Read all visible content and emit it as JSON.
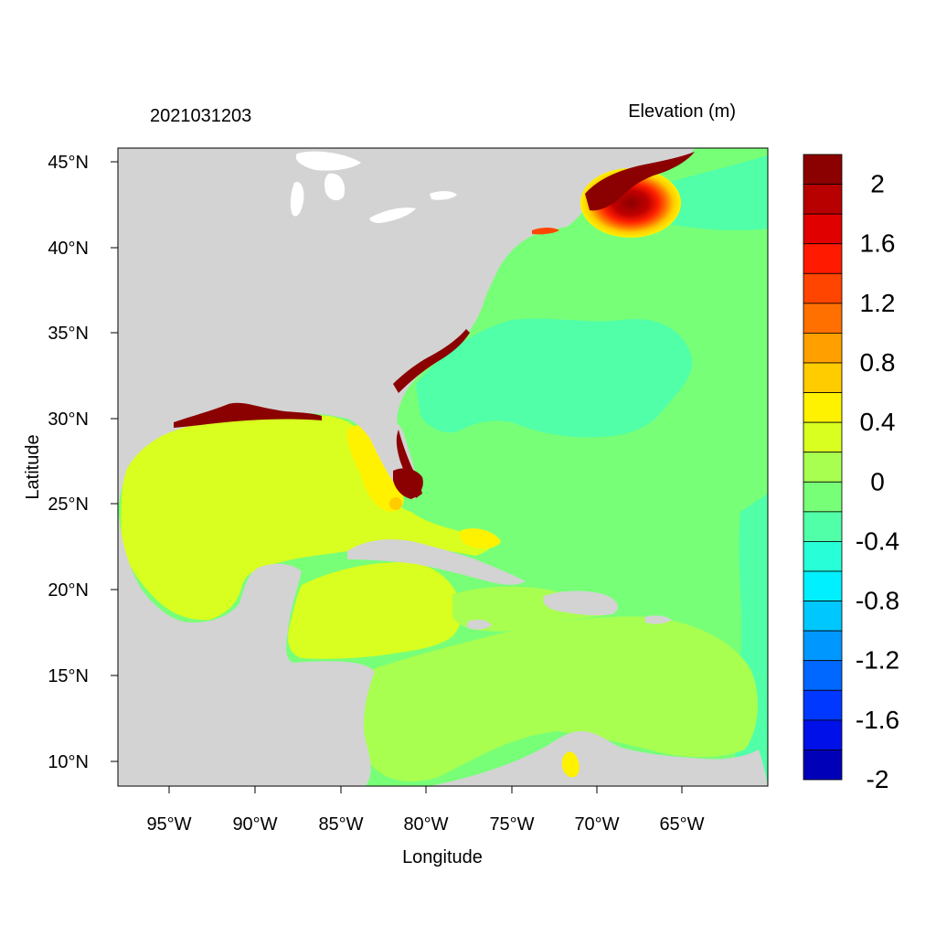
{
  "header": {
    "date_label": "2021031203",
    "variable_label": "Elevation (m)"
  },
  "axes": {
    "xlabel": "Longitude",
    "ylabel": "Latitude",
    "xticks": [
      "95°W",
      "90°W",
      "85°W",
      "80°W",
      "75°W",
      "70°W",
      "65°W"
    ],
    "yticks": [
      "45°N",
      "40°N",
      "35°N",
      "30°N",
      "25°N",
      "20°N",
      "15°N",
      "10°N"
    ]
  },
  "colorbar": {
    "labels": [
      "2",
      "1.6",
      "1.2",
      "0.8",
      "0.4",
      "0",
      "-0.4",
      "-0.8",
      "-1.2",
      "-1.6",
      "-2"
    ],
    "colors": [
      "#8b0000",
      "#b80000",
      "#e00000",
      "#ff1a00",
      "#ff4500",
      "#ff7000",
      "#ff9f00",
      "#ffcc00",
      "#fff200",
      "#d8ff20",
      "#a8ff50",
      "#78ff78",
      "#50ffa8",
      "#28ffd8",
      "#00f0ff",
      "#00c8ff",
      "#0098ff",
      "#0068ff",
      "#0038ff",
      "#0010e8",
      "#0000b8"
    ]
  },
  "legend_colors": {
    "land": "#d3d3d3",
    "ocean_zero": "#78ff78",
    "ocean_neg": "#50ffa8",
    "gulf_positive": "#d8ff20",
    "surge_high": "#8b0000"
  }
}
